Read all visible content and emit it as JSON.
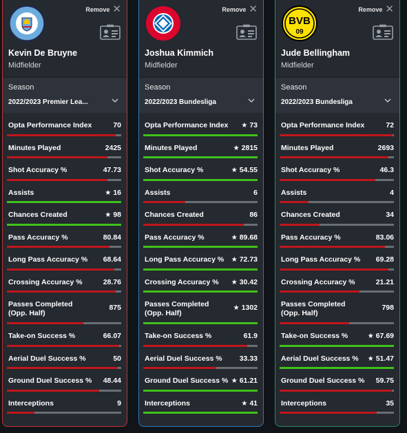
{
  "colors": {
    "red": "#c0161b",
    "green": "#3fc21a",
    "track": "#6a6e75"
  },
  "cards": [
    {
      "border": "#c6332e",
      "remove_label": "Remove",
      "player": {
        "name": "Kevin De Bruyne",
        "position": "Midfielder"
      },
      "crest": {
        "icon": "manchester-city-crest-icon",
        "text": "MANCHESTER CITY"
      },
      "season": {
        "label": "Season",
        "value": "2022/2023 Premier Lea..."
      },
      "stats": [
        {
          "label": "Opta Performance Index",
          "value": "70",
          "star": false,
          "fill": 0.95,
          "color": "red"
        },
        {
          "label": "Minutes Played",
          "value": "2425",
          "star": false,
          "fill": 0.88,
          "color": "red"
        },
        {
          "label": "Shot Accuracy %",
          "value": "47.73",
          "star": false,
          "fill": 0.88,
          "color": "red"
        },
        {
          "label": "Assists",
          "value": "16",
          "star": true,
          "fill": 1.0,
          "color": "green"
        },
        {
          "label": "Chances Created",
          "value": "98",
          "star": true,
          "fill": 1.0,
          "color": "green"
        },
        {
          "label": "Pass Accuracy %",
          "value": "80.84",
          "star": false,
          "fill": 0.9,
          "color": "red"
        },
        {
          "label": "Long Pass Accuracy %",
          "value": "68.64",
          "star": false,
          "fill": 0.94,
          "color": "red"
        },
        {
          "label": "Crossing Accuracy %",
          "value": "28.76",
          "star": false,
          "fill": 0.95,
          "color": "red"
        },
        {
          "label": "Passes Completed (Opp. Half)",
          "value": "875",
          "star": false,
          "fill": 0.67,
          "color": "red",
          "tall": true
        },
        {
          "label": "Take-on Success %",
          "value": "66.07",
          "star": false,
          "fill": 0.98,
          "color": "red"
        },
        {
          "label": "Aerial Duel Success %",
          "value": "50",
          "star": false,
          "fill": 0.97,
          "color": "red"
        },
        {
          "label": "Ground Duel Success %",
          "value": "48.44",
          "star": false,
          "fill": 0.81,
          "color": "red"
        },
        {
          "label": "Interceptions",
          "value": "9",
          "star": false,
          "fill": 0.24,
          "color": "red"
        }
      ]
    },
    {
      "border": "#2b78b8",
      "remove_label": "Remove",
      "player": {
        "name": "Joshua Kimmich",
        "position": "Midfielder"
      },
      "crest": {
        "icon": "fc-bayern-crest-icon",
        "text": "FC BAYERN MÜNCHEN"
      },
      "season": {
        "label": "Season",
        "value": "2022/2023 Bundesliga"
      },
      "stats": [
        {
          "label": "Opta Performance Index",
          "value": "73",
          "star": true,
          "fill": 1.0,
          "color": "green"
        },
        {
          "label": "Minutes Played",
          "value": "2815",
          "star": true,
          "fill": 1.0,
          "color": "green"
        },
        {
          "label": "Shot Accuracy %",
          "value": "54.55",
          "star": true,
          "fill": 1.0,
          "color": "green"
        },
        {
          "label": "Assists",
          "value": "6",
          "star": false,
          "fill": 0.37,
          "color": "red"
        },
        {
          "label": "Chances Created",
          "value": "86",
          "star": false,
          "fill": 0.88,
          "color": "red"
        },
        {
          "label": "Pass Accuracy %",
          "value": "89.68",
          "star": true,
          "fill": 1.0,
          "color": "green"
        },
        {
          "label": "Long Pass Accuracy %",
          "value": "72.73",
          "star": true,
          "fill": 1.0,
          "color": "green"
        },
        {
          "label": "Crossing Accuracy %",
          "value": "30.42",
          "star": true,
          "fill": 1.0,
          "color": "green"
        },
        {
          "label": "Passes Completed (Opp. Half)",
          "value": "1302",
          "star": true,
          "fill": 1.0,
          "color": "green",
          "tall": true
        },
        {
          "label": "Take-on Success %",
          "value": "61.9",
          "star": false,
          "fill": 0.91,
          "color": "red"
        },
        {
          "label": "Aerial Duel Success %",
          "value": "33.33",
          "star": false,
          "fill": 0.64,
          "color": "red"
        },
        {
          "label": "Ground Duel Success %",
          "value": "61.21",
          "star": true,
          "fill": 1.0,
          "color": "green"
        },
        {
          "label": "Interceptions",
          "value": "41",
          "star": true,
          "fill": 1.0,
          "color": "green"
        }
      ]
    },
    {
      "border": "#2d8a6a",
      "remove_label": "Remove",
      "player": {
        "name": "Jude Bellingham",
        "position": "Midfielder"
      },
      "crest": {
        "icon": "borussia-dortmund-crest-icon",
        "text": "BVB 09"
      },
      "season": {
        "label": "Season",
        "value": "2022/2023 Bundesliga"
      },
      "stats": [
        {
          "label": "Opta Performance Index",
          "value": "72",
          "star": false,
          "fill": 0.99,
          "color": "red"
        },
        {
          "label": "Minutes Played",
          "value": "2693",
          "star": false,
          "fill": 0.95,
          "color": "red"
        },
        {
          "label": "Shot Accuracy %",
          "value": "46.3",
          "star": false,
          "fill": 0.84,
          "color": "red"
        },
        {
          "label": "Assists",
          "value": "4",
          "star": false,
          "fill": 0.25,
          "color": "red"
        },
        {
          "label": "Chances Created",
          "value": "34",
          "star": false,
          "fill": 0.35,
          "color": "red"
        },
        {
          "label": "Pass Accuracy %",
          "value": "83.06",
          "star": false,
          "fill": 0.92,
          "color": "red"
        },
        {
          "label": "Long Pass Accuracy %",
          "value": "69.28",
          "star": false,
          "fill": 0.95,
          "color": "red"
        },
        {
          "label": "Crossing Accuracy %",
          "value": "21.21",
          "star": false,
          "fill": 0.7,
          "color": "red"
        },
        {
          "label": "Passes Completed (Opp. Half)",
          "value": "798",
          "star": false,
          "fill": 0.61,
          "color": "red",
          "tall": true
        },
        {
          "label": "Take-on Success %",
          "value": "67.69",
          "star": true,
          "fill": 1.0,
          "color": "green"
        },
        {
          "label": "Aerial Duel Success %",
          "value": "51.47",
          "star": true,
          "fill": 1.0,
          "color": "green"
        },
        {
          "label": "Ground Duel Success %",
          "value": "59.75",
          "star": false,
          "fill": 0.98,
          "color": "red"
        },
        {
          "label": "Interceptions",
          "value": "35",
          "star": false,
          "fill": 0.85,
          "color": "red"
        }
      ]
    }
  ]
}
